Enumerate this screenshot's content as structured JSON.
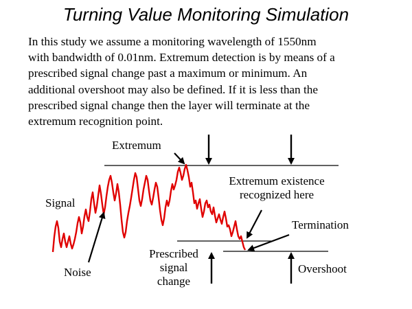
{
  "title": "Turning Value Monitoring Simulation",
  "description_lines": [
    "In this study we assume a monitoring wavelength of 1550nm",
    "with bandwidth of 0.01nm. Extremum detection is by means of a",
    "prescribed signal change past a maximum or minimum. An",
    "additional overshoot may also be defined. If it is less than the",
    "prescribed signal change then the layer will terminate at the",
    "extremum recognition point."
  ],
  "labels": {
    "extremum": "Extremum",
    "signal": "Signal",
    "noise": "Noise",
    "extremum_existence_line1": "Extremum existence",
    "extremum_existence_line2": "recognized here",
    "termination": "Termination",
    "prescribed_line1": "Prescribed",
    "prescribed_line2": "signal",
    "prescribed_line3": "change",
    "overshoot": "Overshoot"
  },
  "colors": {
    "signal_trace": "#e00000",
    "lines": "#000000",
    "text": "#000000"
  }
}
